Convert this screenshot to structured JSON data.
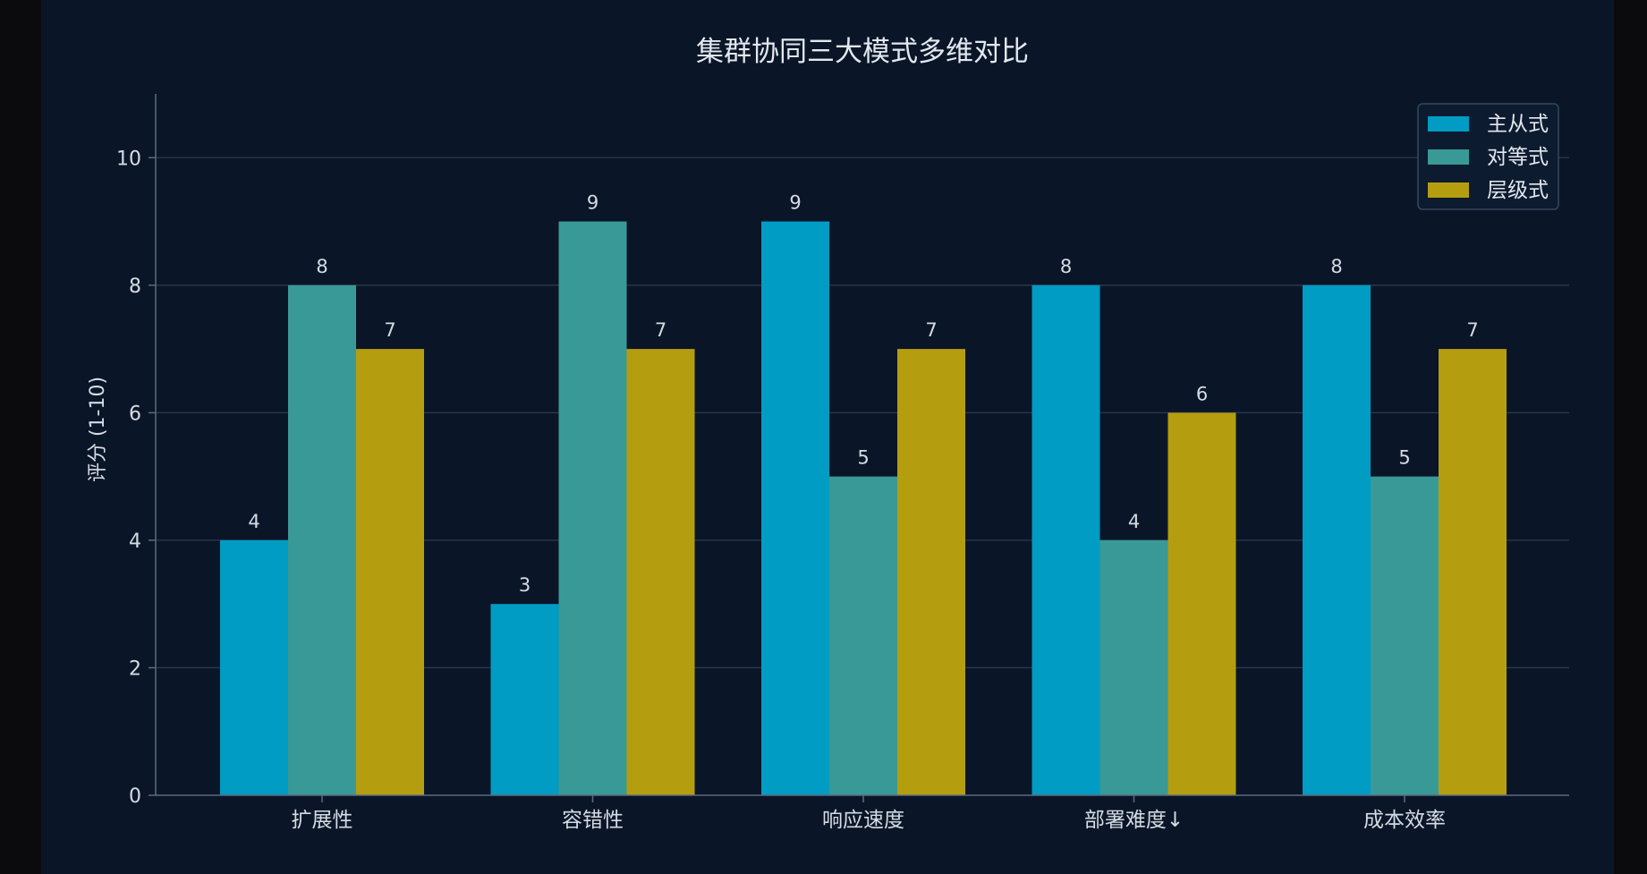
{
  "chart_data": {
    "type": "bar",
    "title": "集群协同三大模式多维对比",
    "xlabel": "",
    "ylabel": "评分 (1-10)",
    "ylim": [
      0,
      11
    ],
    "yticks": [
      0,
      2,
      4,
      6,
      8,
      10
    ],
    "grid": true,
    "legend_position": "top-right",
    "categories": [
      "扩展性",
      "容错性",
      "响应速度",
      "部署难度↓",
      "成本效率"
    ],
    "series": [
      {
        "name": "主从式",
        "color": "#009cc4",
        "values": [
          4,
          3,
          9,
          8,
          8
        ]
      },
      {
        "name": "对等式",
        "color": "#399996",
        "values": [
          8,
          9,
          5,
          4,
          5
        ]
      },
      {
        "name": "层级式",
        "color": "#b59d10",
        "values": [
          7,
          7,
          7,
          6,
          7
        ]
      }
    ]
  }
}
